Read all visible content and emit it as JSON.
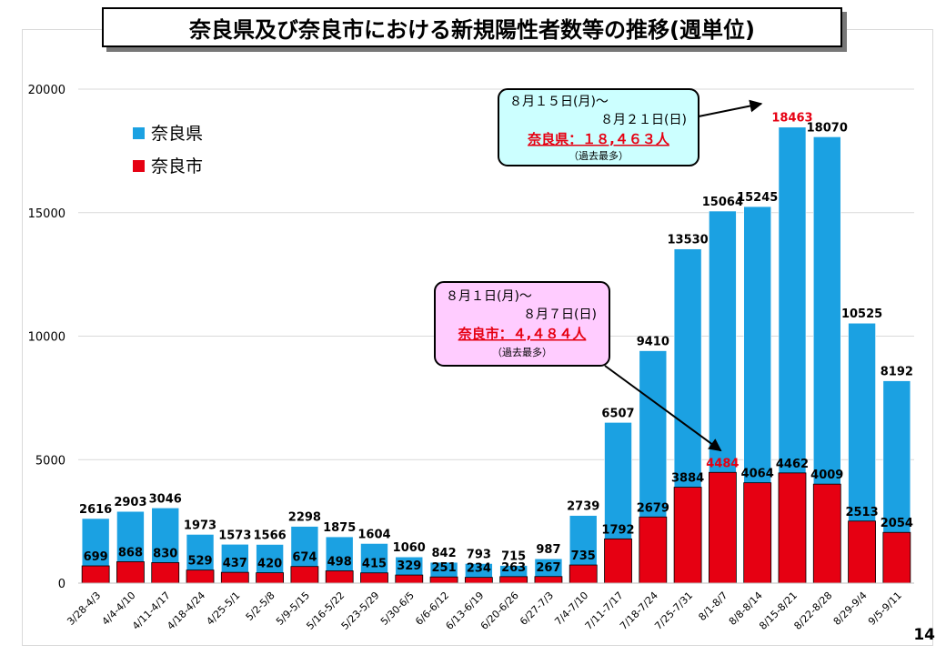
{
  "title": "奈良県及び奈良市における新規陽性者数等の推移(週単位)",
  "page_number": "14",
  "colors": {
    "prefecture": "#1ba1e2",
    "city": "#e60012",
    "highlight_text": "#e60012",
    "callout1_bg": "#ccffff",
    "callout2_bg": "#ffccff"
  },
  "callout_pref": {
    "line1": "８月１５日(月)～",
    "line2": "８月２１日(日)",
    "line3": "奈良県：１８,４６３人",
    "line4": "（過去最多）"
  },
  "callout_city": {
    "line1": "８月１日(月)～",
    "line2": "８月７日(日)",
    "line3": "奈良市：４,４８４人",
    "line4": "（過去最多）"
  },
  "chart_data": {
    "type": "bar",
    "title": "奈良県及び奈良市における新規陽性者数等の推移(週単位)",
    "ylim": [
      0,
      20000
    ],
    "yticks": [
      0,
      5000,
      10000,
      15000,
      20000
    ],
    "grid": true,
    "legend_position": "top-left",
    "categories": [
      "3/28-4/3",
      "4/4-4/10",
      "4/11-4/17",
      "4/18-4/24",
      "4/25-5/1",
      "5/2-5/8",
      "5/9-5/15",
      "5/16-5/22",
      "5/23-5/29",
      "5/30-6/5",
      "6/6-6/12",
      "6/13-6/19",
      "6/20-6/26",
      "6/27-7/3",
      "7/4-7/10",
      "7/11-7/17",
      "7/18-7/24",
      "7/25-7/31",
      "8/1-8/7",
      "8/8-8/14",
      "8/15-8/21",
      "8/22-8/28",
      "8/29-9/4",
      "9/5-9/11"
    ],
    "series": [
      {
        "name": "奈良県",
        "values": [
          2616,
          2903,
          3046,
          1973,
          1573,
          1566,
          2298,
          1875,
          1604,
          1060,
          842,
          793,
          715,
          987,
          2739,
          6507,
          9410,
          13530,
          15064,
          15245,
          18463,
          18070,
          10525,
          8192
        ]
      },
      {
        "name": "奈良市",
        "values": [
          699,
          868,
          830,
          529,
          437,
          420,
          674,
          498,
          415,
          329,
          251,
          234,
          263,
          267,
          735,
          1792,
          2679,
          3884,
          4484,
          4064,
          4462,
          4009,
          2513,
          2054
        ]
      }
    ],
    "highlight": {
      "prefecture_index": 20,
      "city_index": 18
    }
  }
}
